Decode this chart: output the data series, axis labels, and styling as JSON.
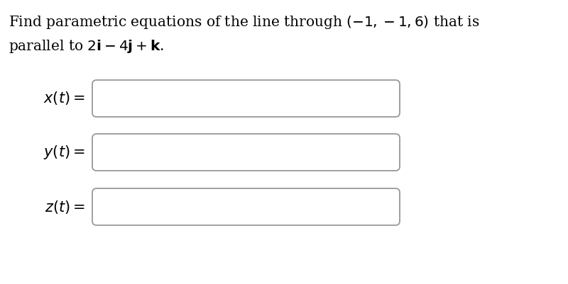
{
  "background_color": "#ffffff",
  "text_color": "#000000",
  "box_edgecolor": "#999999",
  "title_line1": "Find parametric equations of the line through $(-1, -1, 6)$ that is",
  "title_line2": "parallel to $2\\mathbf{i} - 4\\mathbf{j} + \\mathbf{k}$.",
  "labels": [
    "$x(t) =$",
    "$y(t) =$",
    "$z(t) =$"
  ],
  "title_fontsize": 14.5,
  "label_fontsize": 15,
  "fig_width": 8.0,
  "fig_height": 4.01,
  "dpi": 100
}
